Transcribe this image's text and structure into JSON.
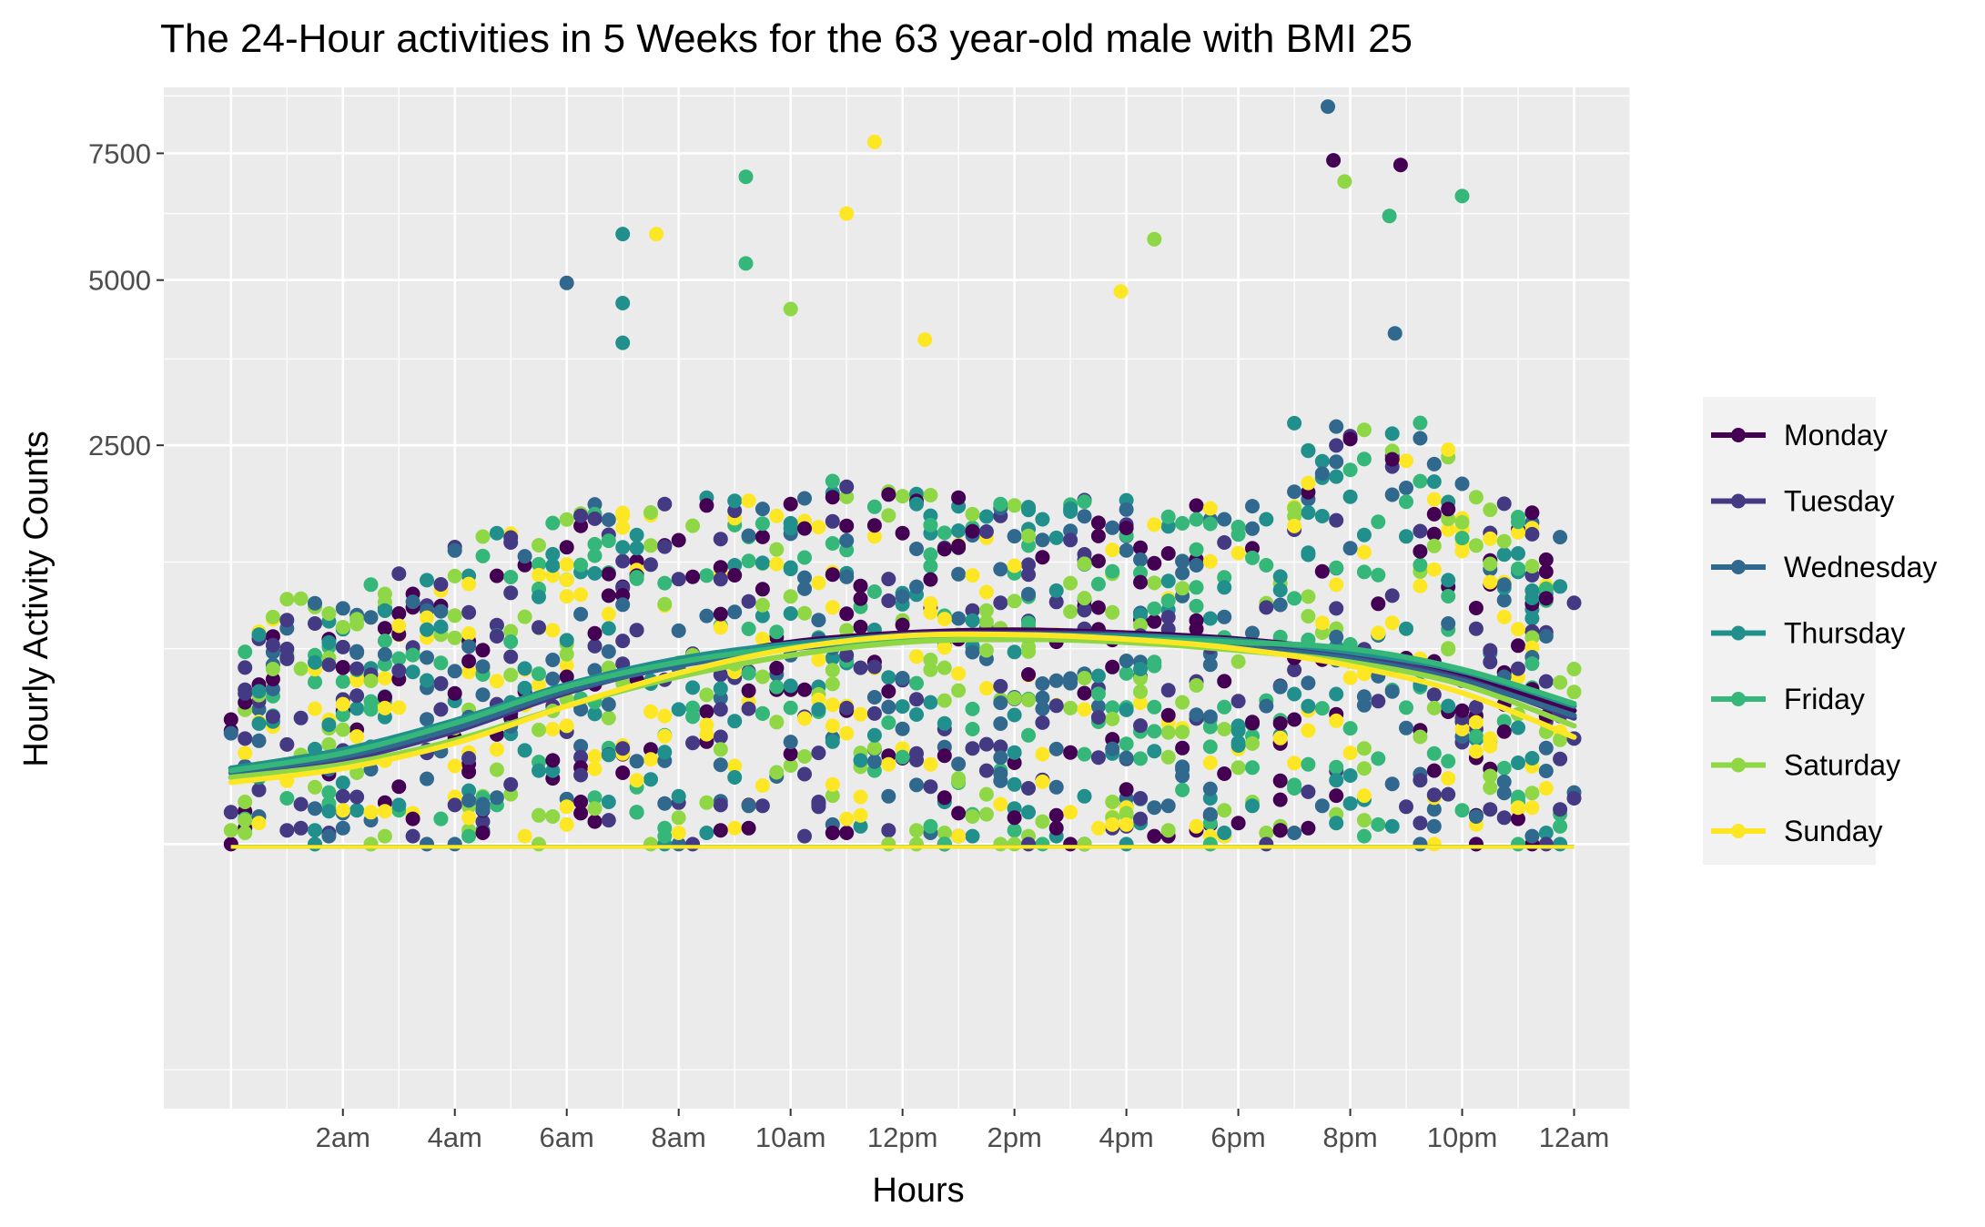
{
  "chart_data": {
    "type": "scatter",
    "title": "The 24-Hour activities in 5 Weeks for the 63 year-old male with BMI 25",
    "xlabel": "Hours",
    "ylabel": "Hourly Activity Counts",
    "x_ticks": [
      "2am",
      "4am",
      "6am",
      "8am",
      "10am",
      "12pm",
      "2pm",
      "4pm",
      "6pm",
      "8pm",
      "10pm",
      "12am"
    ],
    "x_tick_values": [
      2,
      4,
      6,
      8,
      10,
      12,
      14,
      16,
      18,
      20,
      22,
      24
    ],
    "xlim": [
      -1.2,
      25.0
    ],
    "y_ticks": [
      "2500",
      "5000",
      "7500"
    ],
    "y_tick_values": [
      2500,
      5000,
      7500
    ],
    "y_scale": "sqrt",
    "ylim": [
      -1100,
      9000
    ],
    "grid": true,
    "smooth_lines": true,
    "legend_position": "right",
    "series": [
      {
        "name": "Monday",
        "color": "#440154",
        "smooth": [
          90,
          130,
          220,
          380,
          520,
          640,
          700,
          720,
          700,
          660,
          580,
          450,
          280
        ]
      },
      {
        "name": "Tuesday",
        "color": "#443983",
        "smooth": [
          70,
          110,
          200,
          360,
          510,
          620,
          690,
          700,
          690,
          640,
          560,
          430,
          250
        ]
      },
      {
        "name": "Wednesday",
        "color": "#31688E",
        "smooth": [
          80,
          120,
          210,
          370,
          500,
          600,
          650,
          660,
          650,
          610,
          540,
          420,
          260
        ]
      },
      {
        "name": "Thursday",
        "color": "#21908C",
        "smooth": [
          90,
          140,
          240,
          400,
          540,
          630,
          680,
          690,
          680,
          650,
          580,
          470,
          300
        ]
      },
      {
        "name": "Friday",
        "color": "#35B779",
        "smooth": [
          85,
          130,
          230,
          390,
          520,
          610,
          660,
          670,
          660,
          640,
          600,
          480,
          310
        ]
      },
      {
        "name": "Saturday",
        "color": "#8FD744",
        "smooth": [
          70,
          100,
          170,
          300,
          440,
          560,
          640,
          660,
          640,
          590,
          520,
          400,
          220
        ]
      },
      {
        "name": "Sunday",
        "color": "#FDE725",
        "smooth": [
          60,
          90,
          160,
          300,
          460,
          600,
          680,
          690,
          660,
          600,
          500,
          360,
          180
        ]
      }
    ],
    "smooth_x": [
      0,
      2,
      4,
      6,
      8,
      10,
      12,
      14,
      16,
      18,
      20,
      22,
      24
    ],
    "highlight_points": [
      {
        "series": "Wednesday",
        "x": 19.6,
        "y": 8550
      },
      {
        "series": "Sunday",
        "x": 11.5,
        "y": 7750
      },
      {
        "series": "Monday",
        "x": 19.7,
        "y": 7350
      },
      {
        "series": "Monday",
        "x": 20.9,
        "y": 7250
      },
      {
        "series": "Friday",
        "x": 9.2,
        "y": 7000
      },
      {
        "series": "Saturday",
        "x": 19.9,
        "y": 6900
      },
      {
        "series": "Friday",
        "x": 22.0,
        "y": 6600
      },
      {
        "series": "Sunday",
        "x": 11.0,
        "y": 6250
      },
      {
        "series": "Friday",
        "x": 20.7,
        "y": 6200
      },
      {
        "series": "Thursday",
        "x": 7.0,
        "y": 5850
      },
      {
        "series": "Sunday",
        "x": 7.6,
        "y": 5850
      },
      {
        "series": "Saturday",
        "x": 16.5,
        "y": 5750
      },
      {
        "series": "Friday",
        "x": 9.2,
        "y": 5300
      },
      {
        "series": "Wednesday",
        "x": 6.0,
        "y": 4950
      },
      {
        "series": "Sunday",
        "x": 15.9,
        "y": 4800
      },
      {
        "series": "Thursday",
        "x": 7.0,
        "y": 4600
      },
      {
        "series": "Saturday",
        "x": 10.0,
        "y": 4500
      },
      {
        "series": "Thursday",
        "x": 7.0,
        "y": 3950
      },
      {
        "series": "Wednesday",
        "x": 20.8,
        "y": 4100
      },
      {
        "series": "Sunday",
        "x": 12.4,
        "y": 4000
      }
    ]
  },
  "legend": {
    "items": [
      {
        "label": "Monday",
        "color": "#440154"
      },
      {
        "label": "Tuesday",
        "color": "#443983"
      },
      {
        "label": "Wednesday",
        "color": "#31688E"
      },
      {
        "label": "Thursday",
        "color": "#21908C"
      },
      {
        "label": "Friday",
        "color": "#35B779"
      },
      {
        "label": "Saturday",
        "color": "#8FD744"
      },
      {
        "label": "Sunday",
        "color": "#FDE725"
      }
    ]
  }
}
